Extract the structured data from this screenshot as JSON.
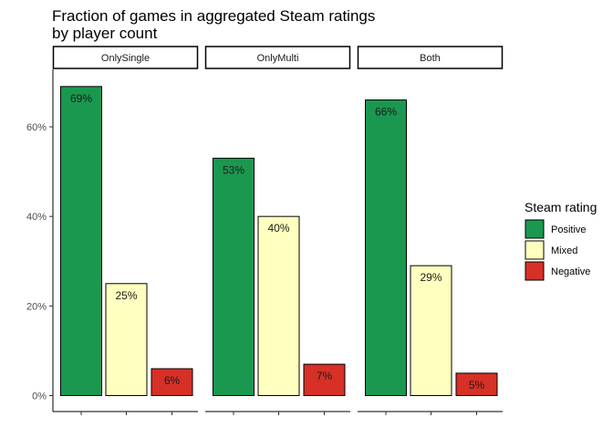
{
  "chart_data": {
    "type": "bar",
    "title": "Fraction of games in aggregated Steam ratings",
    "subtitle": "by player count",
    "xlabel": "",
    "ylabel": "",
    "ylim": [
      0,
      0.72
    ],
    "y_ticks": [
      0,
      0.2,
      0.4,
      0.6
    ],
    "y_tick_labels": [
      "0%",
      "20%",
      "40%",
      "60%"
    ],
    "grid": false,
    "facets": [
      "OnlySingle",
      "OnlyMulti",
      "Both"
    ],
    "categories": [
      "Positive",
      "Mixed",
      "Negative"
    ],
    "series": [
      {
        "facet": "OnlySingle",
        "values": [
          0.69,
          0.25,
          0.06
        ],
        "labels": [
          "69%",
          "25%",
          "6%"
        ]
      },
      {
        "facet": "OnlyMulti",
        "values": [
          0.53,
          0.4,
          0.07
        ],
        "labels": [
          "53%",
          "40%",
          "7%"
        ]
      },
      {
        "facet": "Both",
        "values": [
          0.66,
          0.29,
          0.05
        ],
        "labels": [
          "66%",
          "29%",
          "5%"
        ]
      }
    ],
    "legend": {
      "title": "Steam rating",
      "placement": "right",
      "entries": [
        "Positive",
        "Mixed",
        "Negative"
      ]
    },
    "colors": {
      "Positive": "#1a9850",
      "Mixed": "#ffffbf",
      "Negative": "#d73027"
    }
  }
}
